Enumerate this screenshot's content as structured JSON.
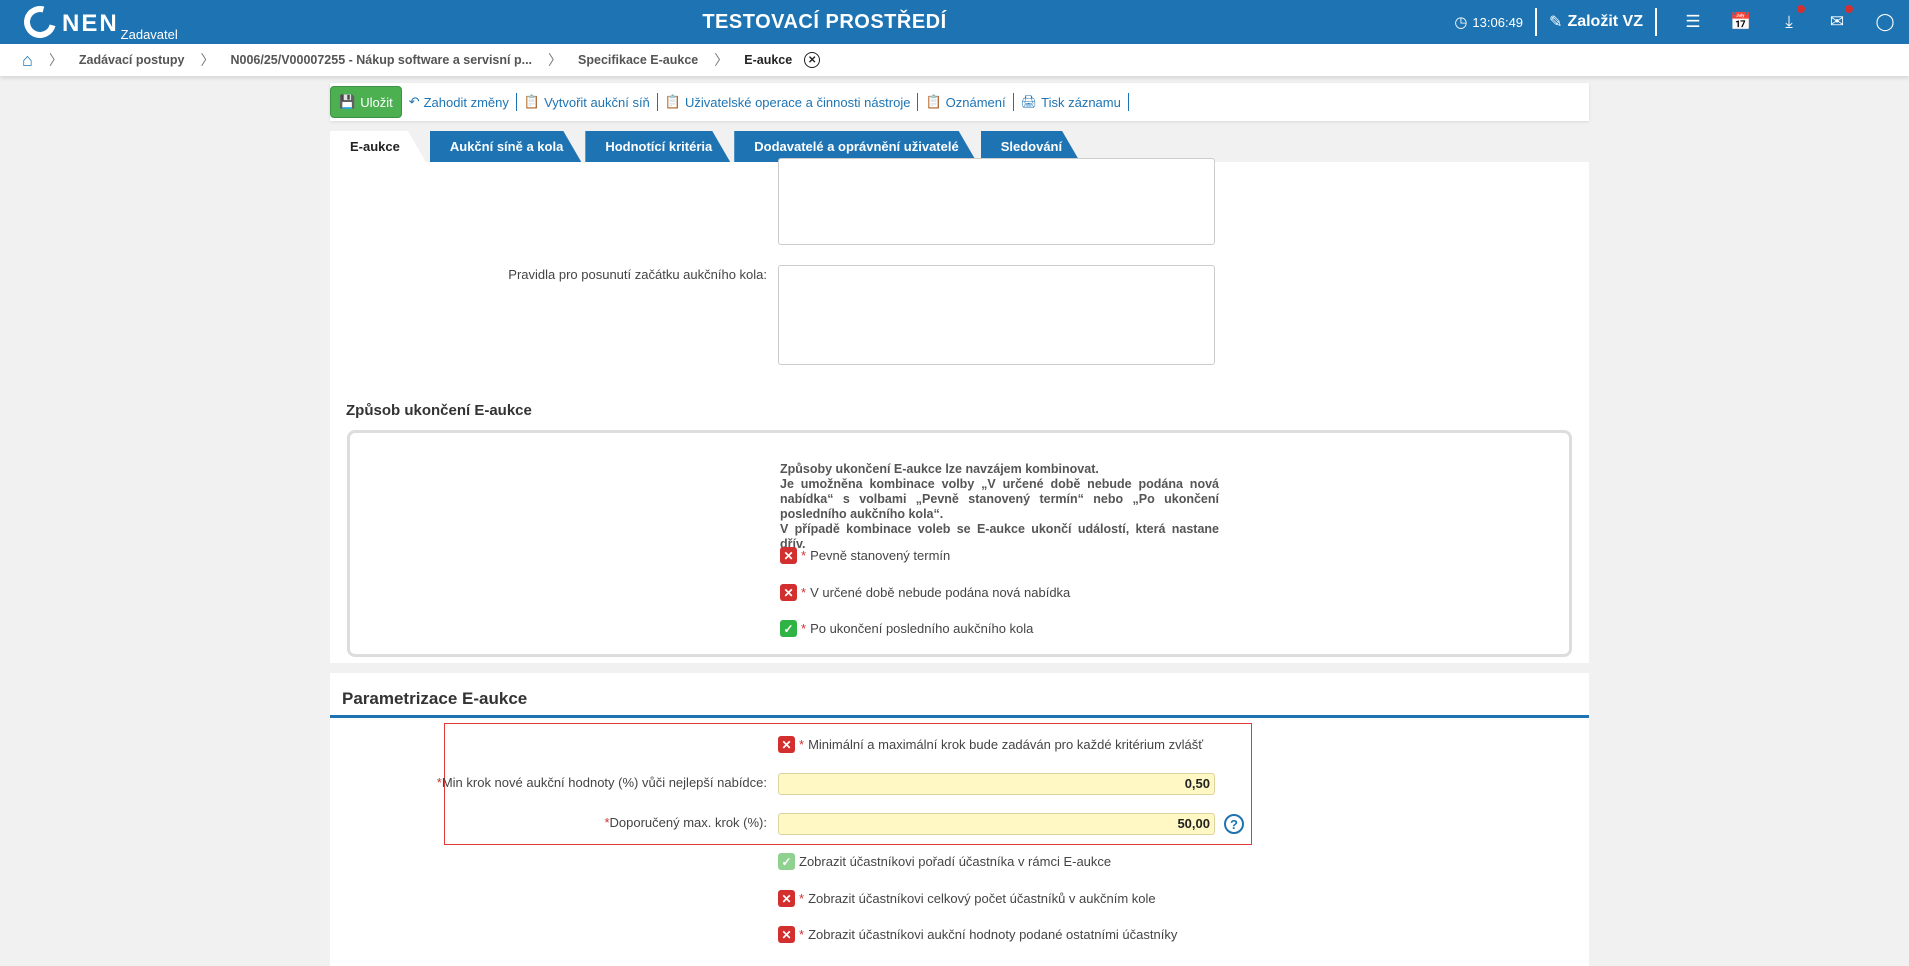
{
  "header": {
    "logo": "NEN",
    "logo_sub": "Zadavatel",
    "env": "TESTOVACÍ PROSTŘEDÍ",
    "time": "13:06:49",
    "create_label": "Založit VZ",
    "icons": [
      "clock-icon",
      "edit-icon",
      "menu-icon",
      "calendar-icon",
      "download-icon",
      "mail-icon",
      "user-icon"
    ]
  },
  "breadcrumb": [
    "Zadávací postupy",
    "N006/25/V00007255 - Nákup software a servisní p...",
    "Specifikace E-aukce",
    "E-aukce"
  ],
  "toolbar": {
    "save": "Uložit",
    "discard": "Zahodit změny",
    "create_hall": "Vytvořit aukční síň",
    "user_ops": "Uživatelské operace a činnosti nástroje",
    "notices": "Oznámení",
    "print": "Tisk záznamu"
  },
  "tabs": [
    "E-aukce",
    "Aukční síně a kola",
    "Hodnotící kritéria",
    "Dodavatelé a oprávnění uživatelé",
    "Sledování"
  ],
  "form": {
    "rules_label": "Pravidla pro posunutí začátku aukčního kola:",
    "end_section": "Způsob ukončení E-aukce",
    "note": [
      "Způsoby ukončení E-aukce lze navzájem kombinovat.",
      "Je umožněna kombinace volby „V určené době nebude podána nová nabídka“ s volbami „Pevně stanovený termín“ nebo „Po ukončení posledního aukčního kola“.",
      "V případě kombinace voleb se E-aukce ukončí událostí, která nastane dřív."
    ],
    "end_options": [
      {
        "label": "Pevně stanovený termín",
        "checked": false
      },
      {
        "label": "V určené době nebude podána nová nabídka",
        "checked": false
      },
      {
        "label": "Po ukončení posledního aukčního kola",
        "checked": true
      }
    ],
    "param_section": "Parametrizace E-aukce",
    "per_criterion": {
      "label": "Minimální a maximální krok bude zadáván pro každé kritérium zvlášť",
      "checked": false
    },
    "min_step_label": "Min krok nové aukční hodnoty (%) vůči nejlepší nabídce:",
    "min_step_value": "0,50",
    "max_step_label": "Doporučený max. krok (%):",
    "max_step_value": "50,00",
    "display_options": [
      {
        "label": "Zobrazit účastníkovi pořadí účastníka v rámci E-aukce",
        "checked": true
      },
      {
        "label": "Zobrazit účastníkovi celkový počet účastníků v aukčním kole",
        "checked": false
      },
      {
        "label": "Zobrazit účastníkovi aukční hodnoty podané ostatními účastníky",
        "checked": false
      }
    ]
  }
}
